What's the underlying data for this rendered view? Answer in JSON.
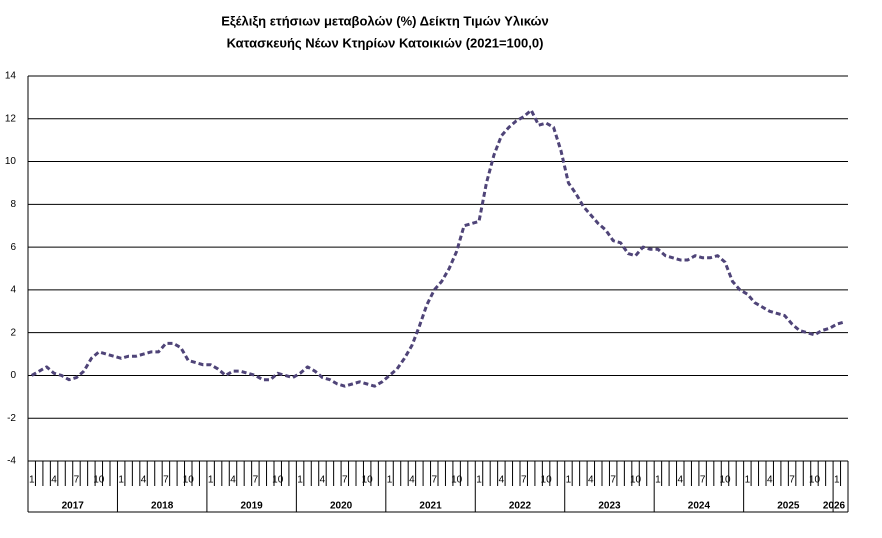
{
  "chart_data": {
    "type": "line",
    "title": [
      "Εξέλιξη ετήσιων μεταβολών (%) Δείκτη Τιμών Υλικών",
      "Κατασκευής Νέων Κτηρίων Κατοικιών (2021=100,0)"
    ],
    "categories": [
      "1",
      null,
      null,
      "4",
      null,
      null,
      "7",
      null,
      null,
      "10",
      null,
      null,
      "1",
      null,
      null,
      "4",
      null,
      null,
      "7",
      null,
      null,
      "10",
      null,
      null,
      "1",
      null,
      null,
      "4",
      null,
      null,
      "7",
      null,
      null,
      "10",
      null,
      null,
      "1",
      null,
      null,
      "4",
      null,
      null,
      "7",
      null,
      null,
      "10",
      null,
      null,
      "1",
      null,
      null,
      "4",
      null,
      null,
      "7",
      null,
      null,
      "10",
      null,
      null,
      "1",
      null,
      null,
      "4",
      null,
      null,
      "7",
      null,
      null,
      "10",
      null,
      null,
      "1",
      null,
      null,
      "4",
      null,
      null,
      "7",
      null,
      null,
      "10",
      null,
      null,
      "1",
      null,
      null,
      "4",
      null,
      null,
      "7",
      null,
      null,
      "10",
      null,
      null,
      "1",
      null,
      null,
      "4",
      null,
      null,
      "7",
      null,
      null,
      "10",
      null,
      null,
      "1",
      null
    ],
    "years": [
      "2017",
      "2018",
      "2019",
      "2020",
      "2021",
      "2022",
      "2023",
      "2024",
      "2025",
      "2026"
    ],
    "values": [
      0.0,
      0.2,
      0.4,
      0.1,
      0.0,
      -0.2,
      -0.1,
      0.2,
      0.8,
      1.1,
      1.0,
      0.9,
      0.8,
      0.9,
      0.9,
      1.0,
      1.1,
      1.1,
      1.5,
      1.5,
      1.3,
      0.7,
      0.6,
      0.5,
      0.5,
      0.3,
      0.0,
      0.2,
      0.2,
      0.1,
      0.0,
      -0.2,
      -0.2,
      0.1,
      0.0,
      -0.1,
      0.1,
      0.4,
      0.2,
      -0.1,
      -0.2,
      -0.4,
      -0.5,
      -0.4,
      -0.3,
      -0.4,
      -0.5,
      -0.3,
      0.0,
      0.3,
      0.8,
      1.4,
      2.3,
      3.3,
      4.0,
      4.4,
      5.0,
      5.8,
      7.0,
      7.1,
      7.2,
      9.0,
      10.3,
      11.2,
      11.6,
      11.9,
      12.1,
      12.4,
      11.7,
      11.8,
      11.6,
      10.5,
      9.0,
      8.5,
      7.9,
      7.5,
      7.1,
      6.8,
      6.3,
      6.2,
      5.7,
      5.6,
      6.0,
      5.9,
      5.9,
      5.6,
      5.5,
      5.4,
      5.4,
      5.6,
      5.5,
      5.5,
      5.6,
      5.3,
      4.4,
      4.0,
      3.8,
      3.4,
      3.2,
      3.0,
      2.9,
      2.8,
      2.4,
      2.1,
      2.0,
      1.9,
      2.1,
      2.2,
      2.4,
      2.5
    ],
    "color": "#4f4478",
    "line_style": "dashed",
    "ylim": [
      -4,
      14
    ],
    "yticks": [
      -4,
      -2,
      0,
      2,
      4,
      6,
      8,
      10,
      12,
      14
    ],
    "grid": true
  }
}
